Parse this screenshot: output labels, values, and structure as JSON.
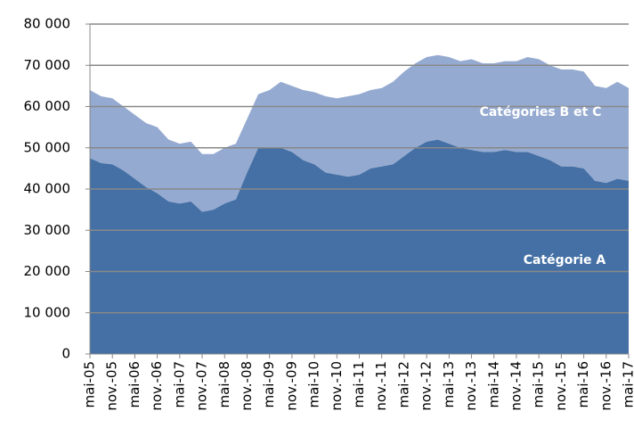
{
  "chart_data": {
    "type": "stacked_area",
    "categories": [
      "mai-05",
      null,
      "nov.-05",
      null,
      "mai-06",
      null,
      "nov.-06",
      null,
      "mai-07",
      null,
      "nov.-07",
      null,
      "mai-08",
      null,
      "nov.-08",
      null,
      "mai-09",
      null,
      "nov.-09",
      null,
      "mai-10",
      null,
      "nov.-10",
      null,
      "mai-11",
      null,
      "nov.-11",
      null,
      "mai-12",
      null,
      "nov.-12",
      null,
      "mai-13",
      null,
      "nov.-13",
      null,
      "mai-14",
      null,
      "nov.-14",
      null,
      "mai-15",
      null,
      "nov.-15",
      null,
      "mai-16",
      null,
      "nov.-16",
      null,
      "mai-17"
    ],
    "series": [
      {
        "name": "Catégorie A",
        "color": "#4470a5",
        "values": [
          47500,
          46300,
          46000,
          44500,
          42500,
          40500,
          39000,
          37000,
          36500,
          37000,
          34500,
          35000,
          36500,
          37500,
          44000,
          50000,
          50000,
          50000,
          49000,
          47000,
          46000,
          44000,
          43500,
          43000,
          43500,
          45000,
          45500,
          46000,
          48000,
          50000,
          51500,
          52000,
          51000,
          50000,
          49500,
          49000,
          49000,
          49500,
          49000,
          49000,
          48000,
          47000,
          45500,
          45500,
          45000,
          42000,
          41500,
          42500,
          42000
        ]
      },
      {
        "name": "Catégories B et C",
        "color": "#95aad0",
        "values": [
          16500,
          16200,
          16000,
          15500,
          15500,
          15500,
          16000,
          15000,
          14500,
          14500,
          14000,
          13500,
          13500,
          13500,
          13000,
          13000,
          14000,
          16000,
          16000,
          17000,
          17500,
          18500,
          18500,
          19500,
          19500,
          19000,
          19000,
          20000,
          20500,
          20500,
          20500,
          20500,
          21000,
          21000,
          22000,
          21500,
          21500,
          21500,
          22000,
          23000,
          23500,
          23000,
          23500,
          23500,
          23500,
          23000,
          23000,
          23500,
          22500
        ]
      }
    ],
    "ylim": [
      0,
      80000
    ],
    "yticks": [
      0,
      {
        "value": 10000,
        "label": "10 000"
      },
      {
        "value": 20000,
        "label": "20 000"
      },
      {
        "value": 30000,
        "label": "30 000"
      },
      {
        "value": 40000,
        "label": "40 000"
      },
      {
        "value": 50000,
        "label": "50 000"
      },
      {
        "value": 60000,
        "label": "60 000"
      },
      {
        "value": 70000,
        "label": "70 000"
      },
      {
        "value": 80000,
        "label": "80 000"
      }
    ],
    "grid": true
  }
}
